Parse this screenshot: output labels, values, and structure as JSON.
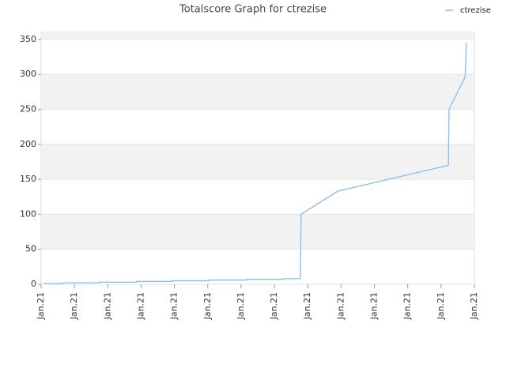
{
  "chart_data": {
    "type": "line",
    "title": "Totalscore Graph for ctrezise",
    "xlim": [
      0,
      13
    ],
    "xticks": [
      {
        "value": 0,
        "label": "Jan.21"
      },
      {
        "value": 1,
        "label": "Jan.21"
      },
      {
        "value": 2,
        "label": "Jan.21"
      },
      {
        "value": 3,
        "label": "Jan.21"
      },
      {
        "value": 4,
        "label": "Jan.21"
      },
      {
        "value": 5,
        "label": "Jan.21"
      },
      {
        "value": 6,
        "label": "Jan.21"
      },
      {
        "value": 7,
        "label": "Jan.21"
      },
      {
        "value": 8,
        "label": "Jan.21"
      },
      {
        "value": 9,
        "label": "Jan.21"
      },
      {
        "value": 10,
        "label": "Jan.21"
      },
      {
        "value": 11,
        "label": "Jan.21"
      },
      {
        "value": 12,
        "label": "Jan.21"
      },
      {
        "value": 13,
        "label": "Jan.21"
      }
    ],
    "ylim": [
      0,
      360
    ],
    "yticks": [
      0,
      50,
      100,
      150,
      200,
      250,
      300,
      350
    ],
    "grid": true,
    "legend": "top-right",
    "series": [
      {
        "name": "ctrezise",
        "color": "#88bbee",
        "x": [
          0.07,
          0.66,
          0.66,
          1.73,
          1.73,
          2.85,
          2.85,
          3.94,
          3.94,
          5.05,
          5.05,
          6.17,
          6.17,
          7.26,
          7.26,
          7.78,
          7.8,
          8.9,
          12.22,
          12.24,
          12.72,
          12.74,
          12.76
        ],
        "values": [
          1,
          1,
          2,
          2,
          3,
          3,
          4,
          4,
          5,
          5,
          6,
          6,
          7,
          7,
          8,
          8,
          100,
          133,
          170,
          250,
          296,
          320,
          345
        ]
      }
    ]
  }
}
